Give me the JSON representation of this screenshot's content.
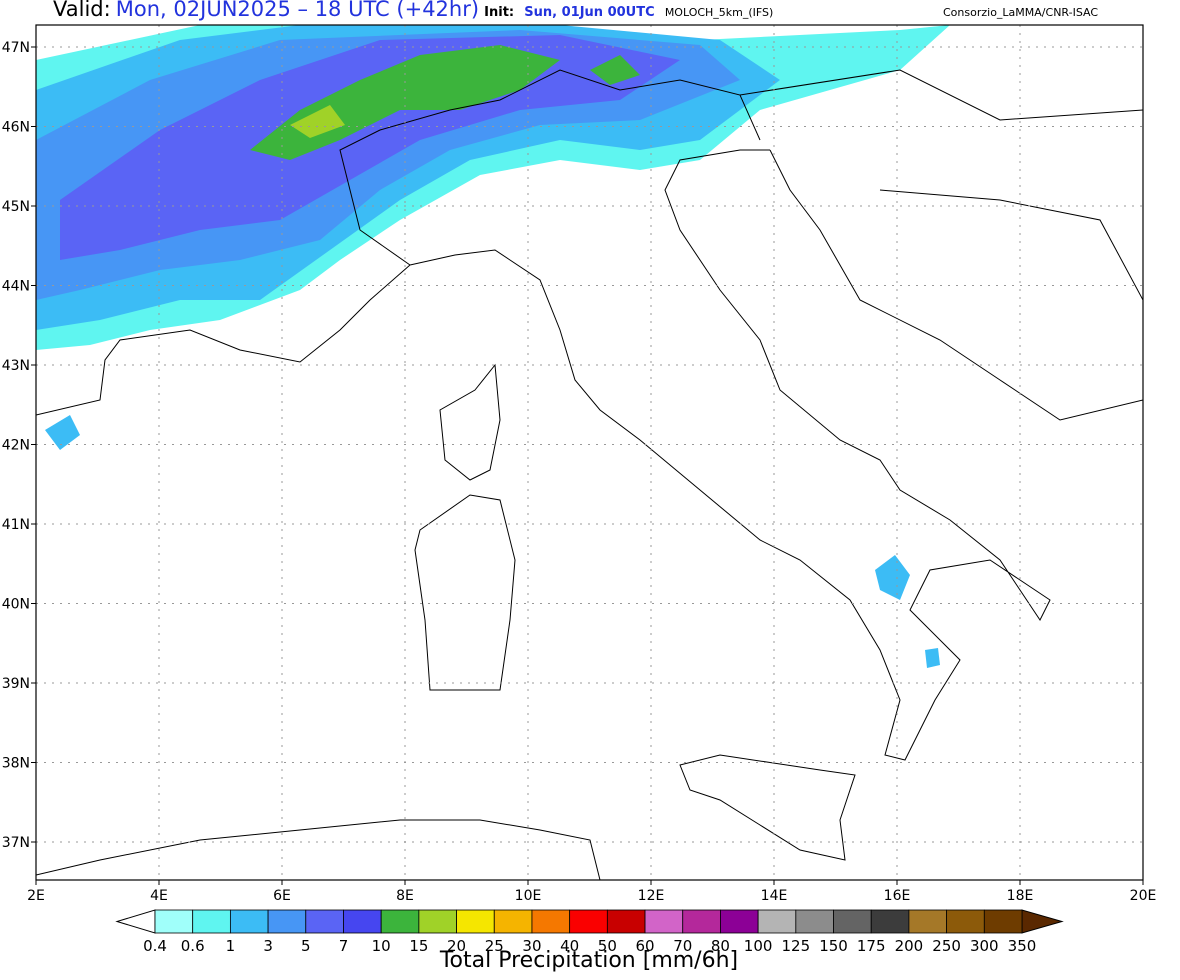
{
  "header": {
    "valid_label": "Valid:",
    "valid_time": "Mon, 02JUN2025 – 18 UTC (+42hr)",
    "init_label": "Init:",
    "init_time": "Sun, 01Jun 00UTC",
    "model": "MOLOCH_5km_(IFS)",
    "credit": "Consorzio_LaMMA/CNR-ISAC"
  },
  "map": {
    "lon_labels": [
      "2E",
      "4E",
      "6E",
      "8E",
      "10E",
      "12E",
      "14E",
      "16E",
      "18E",
      "20E"
    ],
    "lat_labels": [
      "37N",
      "38N",
      "39N",
      "40N",
      "41N",
      "42N",
      "43N",
      "44N",
      "45N",
      "46N",
      "47N"
    ]
  },
  "colorbar": {
    "title": "Total Precipitation [mm/6h]",
    "labels": [
      "0.4",
      "0.6",
      "1",
      "3",
      "5",
      "7",
      "10",
      "15",
      "20",
      "25",
      "30",
      "40",
      "50",
      "60",
      "70",
      "80",
      "100",
      "125",
      "150",
      "175",
      "200",
      "250",
      "300",
      "350"
    ],
    "under_color": "#ffffff",
    "over_color": "#5a2800",
    "colors": [
      "#a0fffa",
      "#5ff5f0",
      "#3cbcf5",
      "#4796f5",
      "#5a64f5",
      "#4646f0",
      "#3cb43c",
      "#a0d228",
      "#f5e600",
      "#f5b400",
      "#f57800",
      "#fa0000",
      "#c80000",
      "#d264c8",
      "#b4289b",
      "#8c0096",
      "#b4b4b4",
      "#8c8c8c",
      "#646464",
      "#3c3c3c",
      "#a57828",
      "#8c5a0a",
      "#6e3c00"
    ]
  }
}
